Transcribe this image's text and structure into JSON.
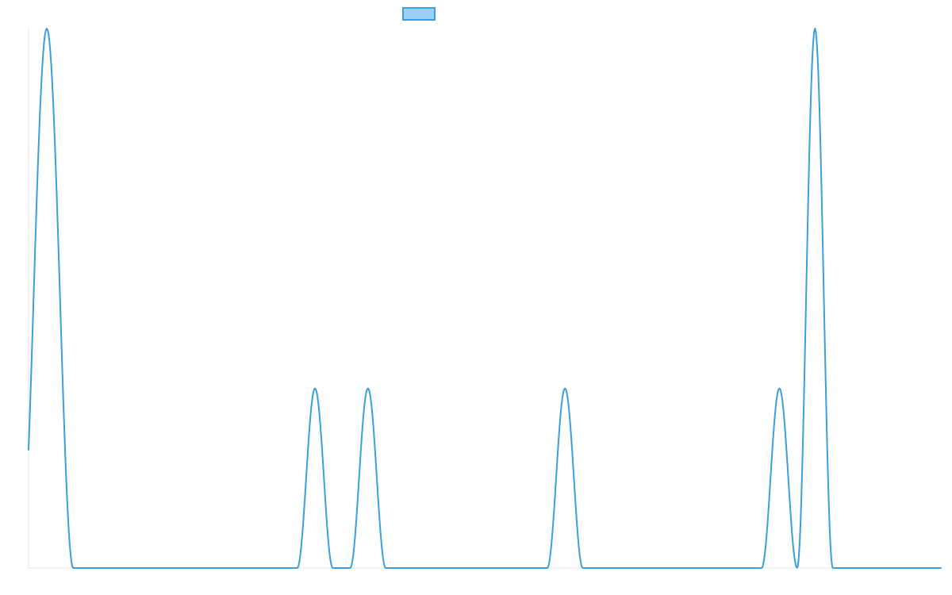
{
  "chart_data": {
    "type": "line",
    "title": "",
    "xlabel": "",
    "ylabel": "",
    "grid": false,
    "legend": {
      "position": "top-center"
    },
    "xlim": [
      0,
      1000
    ],
    "ylim": [
      0,
      1
    ],
    "series": [
      {
        "color": "#3a9fdc",
        "fill_color": "#9dd0f5",
        "peaks": [
          {
            "center": 20,
            "height": 1.0,
            "width": 58
          },
          {
            "center": 314,
            "height": 0.333,
            "width": 39
          },
          {
            "center": 372,
            "height": 0.333,
            "width": 39
          },
          {
            "center": 588,
            "height": 0.333,
            "width": 39
          },
          {
            "center": 823,
            "height": 0.333,
            "width": 39
          },
          {
            "center": 862,
            "height": 1.0,
            "width": 39
          }
        ]
      }
    ]
  }
}
